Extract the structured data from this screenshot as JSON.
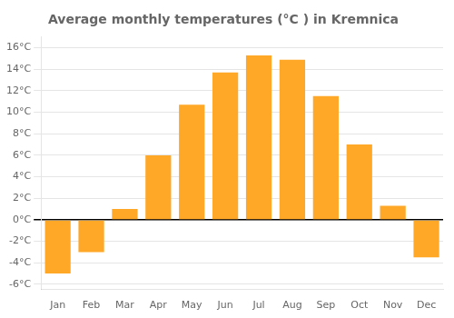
{
  "chart_data": {
    "type": "bar",
    "title": "Average monthly temperatures (°C ) in Kremnica",
    "categories": [
      "Jan",
      "Feb",
      "Mar",
      "Apr",
      "May",
      "Jun",
      "Jul",
      "Aug",
      "Sep",
      "Oct",
      "Nov",
      "Dec"
    ],
    "values": [
      -5.0,
      -3.0,
      1.0,
      6.0,
      10.7,
      13.7,
      15.3,
      14.9,
      11.5,
      7.0,
      1.3,
      -3.5
    ],
    "color": "#FFA726",
    "ylim": [
      -6.5,
      17.0
    ],
    "yticks": [
      {
        "value": -6,
        "label": "-6°C"
      },
      {
        "value": -4,
        "label": "-4°C"
      },
      {
        "value": -2,
        "label": "-2°C"
      },
      {
        "value": 0,
        "label": "0°C"
      },
      {
        "value": 2,
        "label": "2°C"
      },
      {
        "value": 4,
        "label": "4°C"
      },
      {
        "value": 6,
        "label": "6°C"
      },
      {
        "value": 8,
        "label": "8°C"
      },
      {
        "value": 10,
        "label": "10°C"
      },
      {
        "value": 12,
        "label": "12°C"
      },
      {
        "value": 14,
        "label": "14°C"
      },
      {
        "value": 16,
        "label": "16°C"
      }
    ],
    "grid": true
  }
}
